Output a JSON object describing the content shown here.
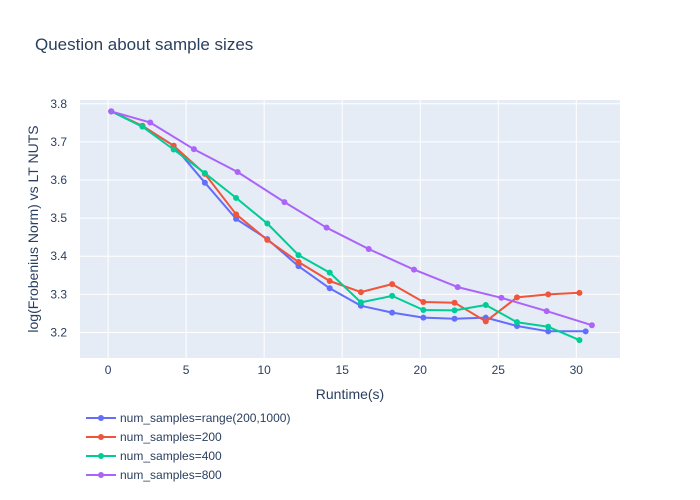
{
  "chart_data": {
    "type": "line",
    "title": "Question about sample sizes",
    "xlabel": "Runtime(s)",
    "ylabel": "log(Frobenius Norm) vs LT NUTS",
    "xlim": [
      -1.8,
      32.8
    ],
    "ylim": [
      3.133,
      3.81
    ],
    "x_ticks": [
      0,
      5,
      10,
      15,
      20,
      25,
      30
    ],
    "y_ticks": [
      3.2,
      3.3,
      3.4,
      3.5,
      3.6,
      3.7,
      3.8
    ],
    "grid": true,
    "legend_position": "bottom-left",
    "series": [
      {
        "name": "num_samples=range(200,1000)",
        "color": "#636efa",
        "x": [
          0.2,
          2.2,
          4.2,
          6.2,
          8.2,
          10.2,
          12.2,
          14.2,
          16.2,
          18.2,
          20.2,
          22.2,
          24.2,
          26.2,
          28.2,
          30.6
        ],
        "y": [
          3.78,
          3.742,
          3.69,
          3.593,
          3.498,
          3.445,
          3.374,
          3.316,
          3.27,
          3.252,
          3.239,
          3.236,
          3.239,
          3.217,
          3.203,
          3.203
        ]
      },
      {
        "name": "num_samples=200",
        "color": "#ef553b",
        "x": [
          0.2,
          2.2,
          4.2,
          6.2,
          8.2,
          10.2,
          12.2,
          14.2,
          16.2,
          18.2,
          20.2,
          22.2,
          24.2,
          26.2,
          28.2,
          30.2
        ],
        "y": [
          3.78,
          3.742,
          3.69,
          3.616,
          3.51,
          3.443,
          3.385,
          3.335,
          3.306,
          3.327,
          3.28,
          3.278,
          3.229,
          3.292,
          3.3,
          3.304
        ]
      },
      {
        "name": "num_samples=400",
        "color": "#00cc96",
        "x": [
          0.2,
          2.2,
          4.2,
          6.2,
          8.2,
          10.2,
          12.2,
          14.2,
          16.2,
          18.2,
          20.2,
          22.2,
          24.2,
          26.2,
          28.2,
          30.2
        ],
        "y": [
          3.78,
          3.74,
          3.68,
          3.618,
          3.553,
          3.486,
          3.403,
          3.357,
          3.279,
          3.296,
          3.259,
          3.258,
          3.272,
          3.227,
          3.215,
          3.18
        ]
      },
      {
        "name": "num_samples=800",
        "color": "#ab63fa",
        "x": [
          0.2,
          2.7,
          5.5,
          8.3,
          11.3,
          14.0,
          16.7,
          19.6,
          22.4,
          25.2,
          28.1,
          31.0
        ],
        "y": [
          3.78,
          3.751,
          3.681,
          3.621,
          3.542,
          3.475,
          3.419,
          3.365,
          3.319,
          3.291,
          3.256,
          3.219
        ]
      }
    ]
  }
}
